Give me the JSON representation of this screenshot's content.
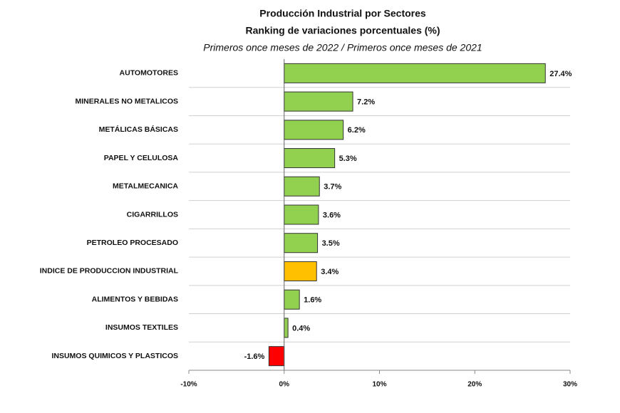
{
  "chart_data": {
    "type": "barh",
    "title": "Producción Industrial por Sectores",
    "subtitle": "Ranking de variaciones porcentuales (%)",
    "caption": "Primeros once meses de 2022 / Primeros once meses de 2021",
    "categories": [
      "AUTOMOTORES",
      "MINERALES NO METALICOS",
      "METÁLICAS BÁSICAS",
      "PAPEL Y CELULOSA",
      "METALMECANICA",
      "CIGARRILLOS",
      "PETROLEO PROCESADO",
      "INDICE DE PRODUCCION INDUSTRIAL",
      "ALIMENTOS Y BEBIDAS",
      "INSUMOS TEXTILES",
      "INSUMOS QUIMICOS Y PLASTICOS"
    ],
    "values": [
      27.4,
      7.2,
      6.2,
      5.3,
      3.7,
      3.6,
      3.5,
      3.4,
      1.6,
      0.4,
      -1.6
    ],
    "value_labels": [
      "27.4%",
      "7.2%",
      "6.2%",
      "5.3%",
      "3.7%",
      "3.6%",
      "3.5%",
      "3.4%",
      "1.6%",
      "0.4%",
      "-1.6%"
    ],
    "colors": [
      "#92d050",
      "#92d050",
      "#92d050",
      "#92d050",
      "#92d050",
      "#92d050",
      "#92d050",
      "#ffc000",
      "#92d050",
      "#92d050",
      "#ff0000"
    ],
    "xlim": [
      -10,
      30
    ],
    "xticks": [
      {
        "value": -10,
        "label": "-10%"
      },
      {
        "value": 0,
        "label": "0%"
      },
      {
        "value": 10,
        "label": "10%"
      },
      {
        "value": 20,
        "label": "20%"
      },
      {
        "value": 30,
        "label": "30%"
      }
    ]
  }
}
